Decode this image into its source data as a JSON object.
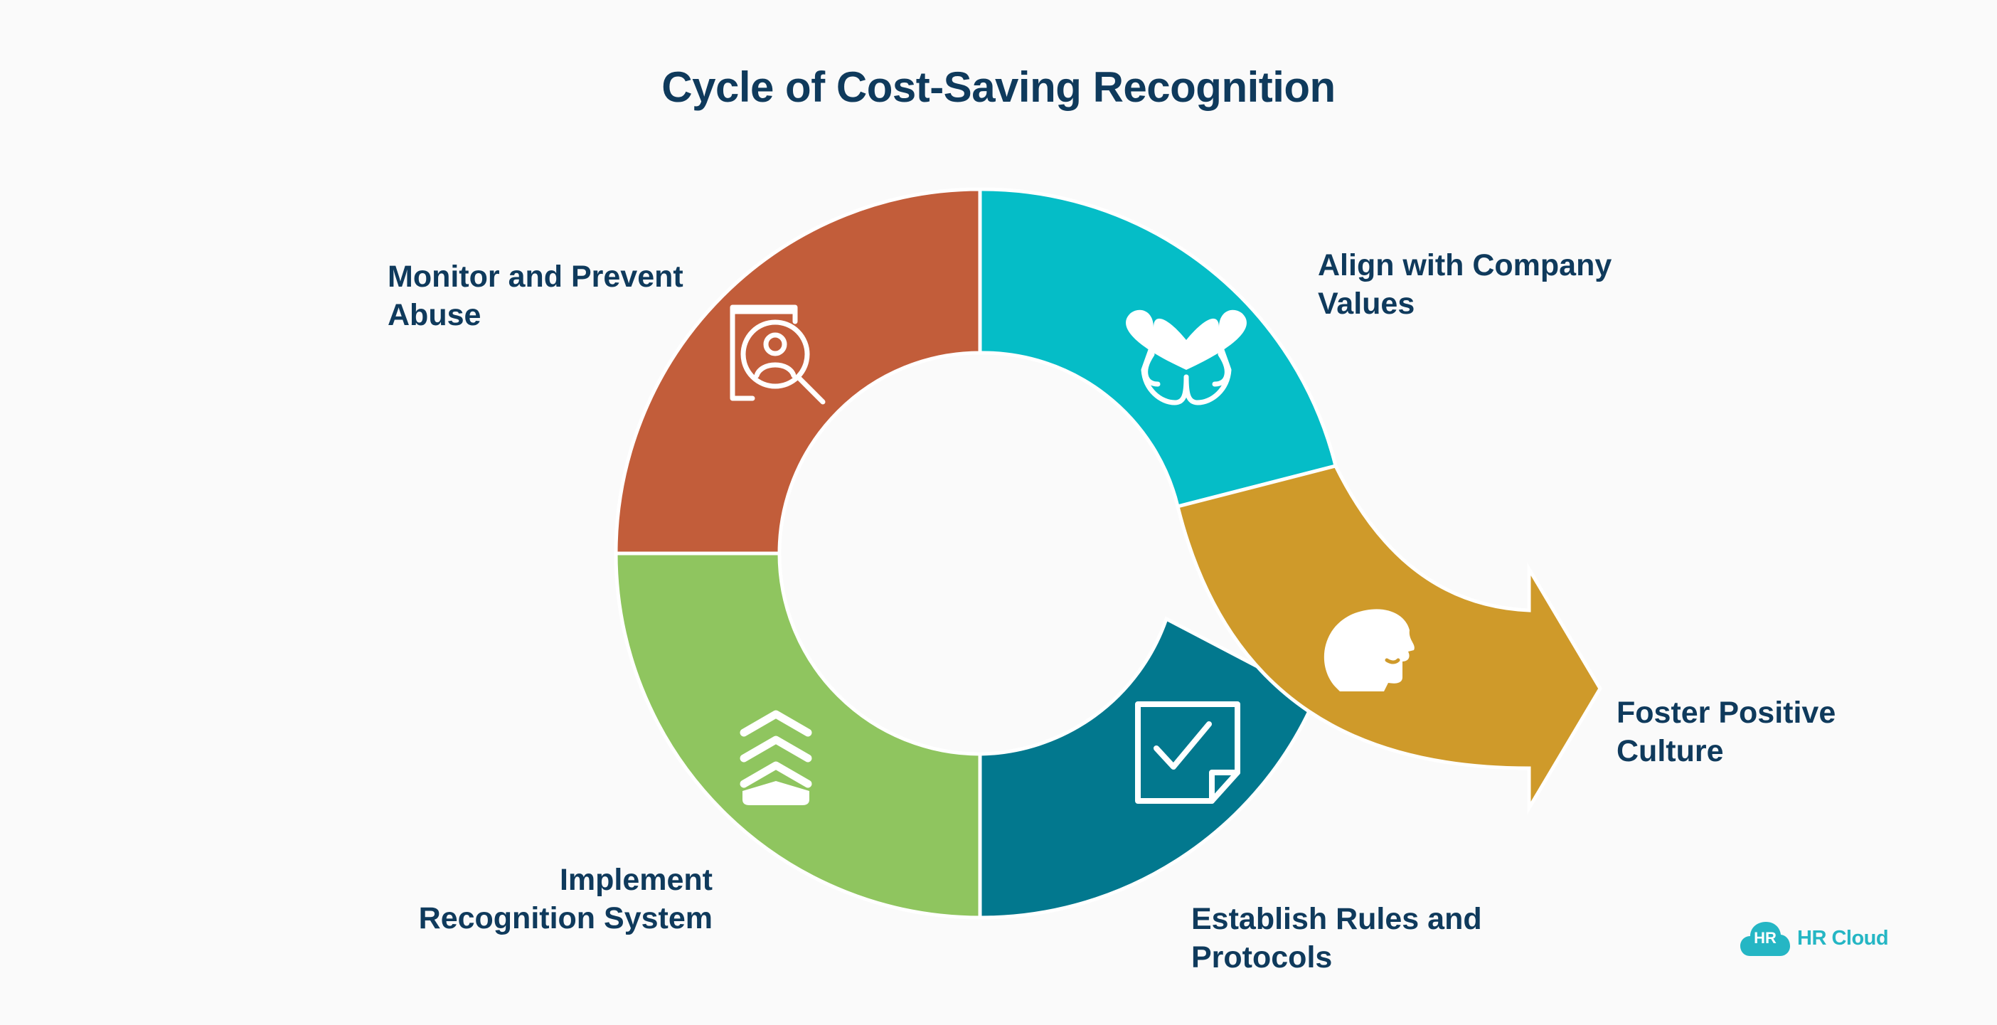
{
  "title": "Cycle of Cost-Saving Recognition",
  "segments": [
    {
      "id": "monitor",
      "lines": [
        "Monitor and Prevent",
        "Abuse"
      ],
      "icon": "search-person-icon",
      "color": "#c25d3a"
    },
    {
      "id": "align",
      "lines": [
        "Align with Company",
        "Values"
      ],
      "icon": "hands-heart-icon",
      "color": "#05bdc7"
    },
    {
      "id": "foster",
      "lines": [
        "Foster Positive",
        "Culture"
      ],
      "icon": "smiling-head-icon",
      "color": "#cf9a2a"
    },
    {
      "id": "establish",
      "lines": [
        "Establish Rules and",
        "Protocols"
      ],
      "icon": "checklist-note-icon",
      "color": "#02788e"
    },
    {
      "id": "implement",
      "lines": [
        "Implement",
        "Recognition System"
      ],
      "icon": "stacked-chevrons-icon",
      "color": "#8fc55f"
    }
  ],
  "logo": {
    "badge": "HR",
    "text": "HR Cloud",
    "color": "#25b6c4"
  }
}
